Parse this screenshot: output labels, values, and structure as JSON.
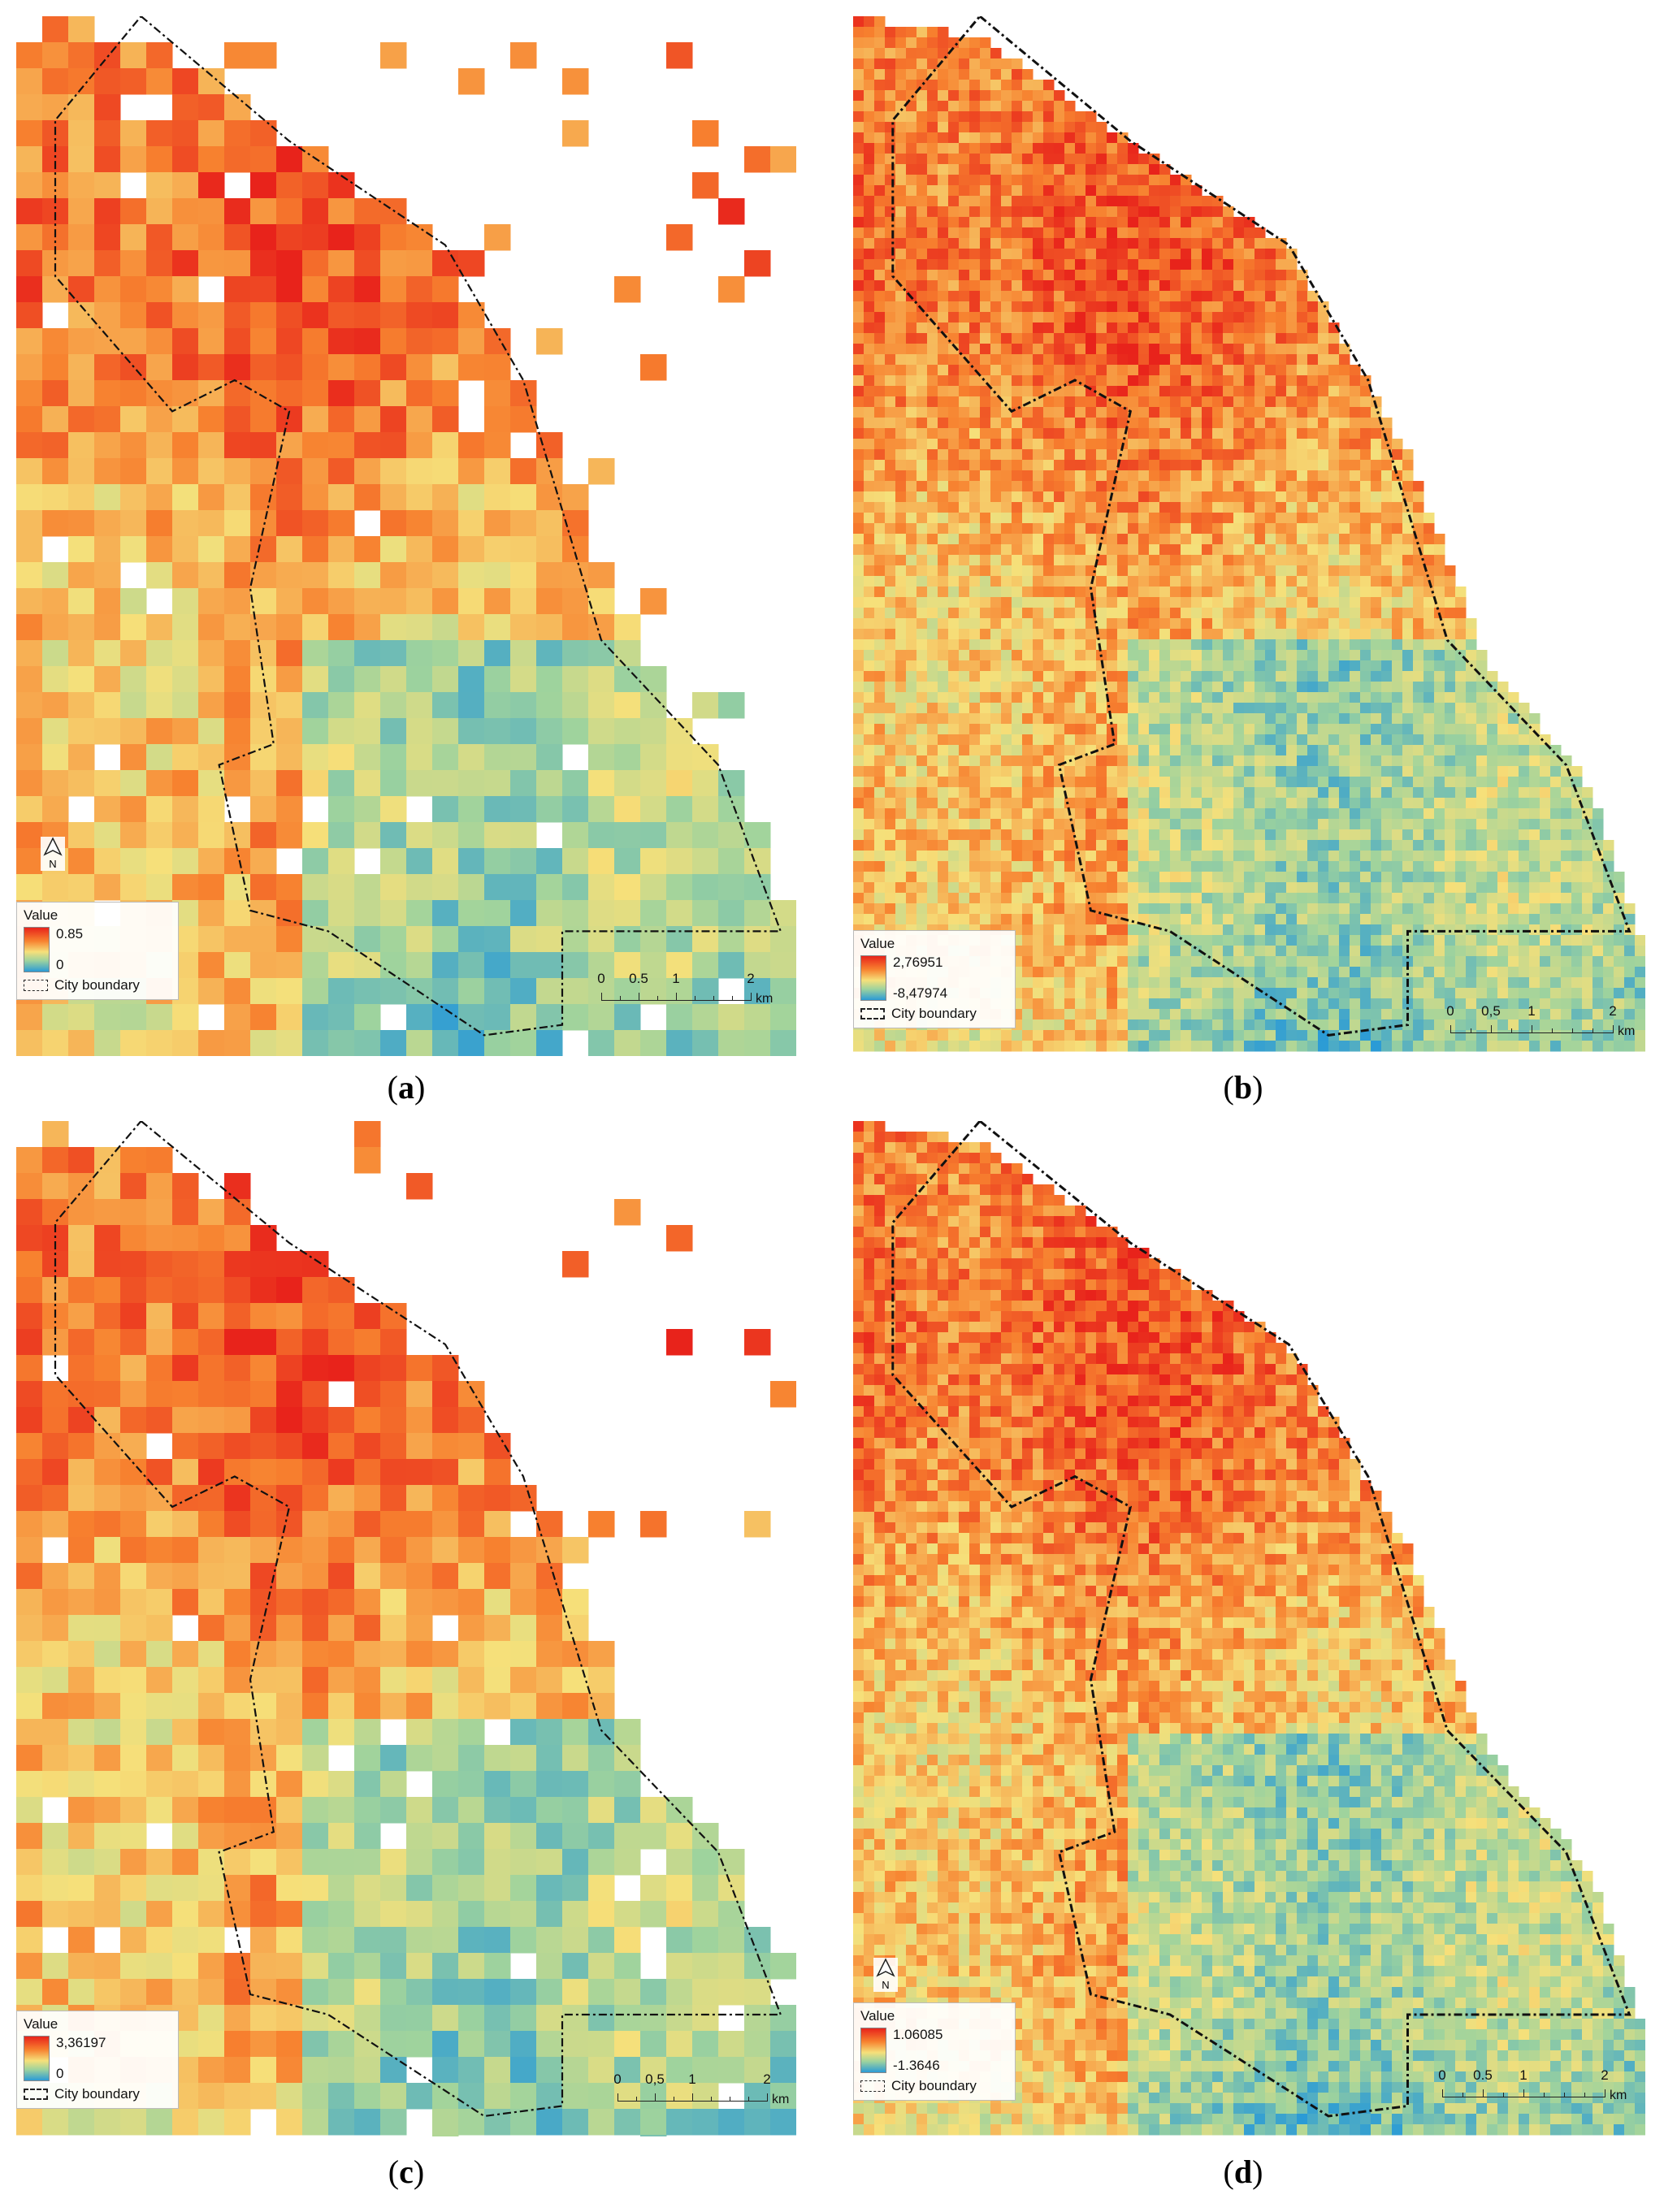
{
  "figure": {
    "panels": [
      {
        "id": "a",
        "label_open": "(",
        "label_letter": "a",
        "label_close": ")",
        "style": "grid",
        "legend": {
          "title": "Value",
          "max": "0.85",
          "min": "0",
          "boundary": "City boundary"
        },
        "scale": {
          "ticks": [
            "0",
            "0.5",
            "1",
            "2"
          ],
          "unit": "km"
        },
        "north_arrow": true
      },
      {
        "id": "b",
        "label_open": "(",
        "label_letter": "b",
        "label_close": ")",
        "style": "fine",
        "legend": {
          "title": "Value",
          "max": "2,76951",
          "min": "-8,47974",
          "boundary": "City boundary"
        },
        "scale": {
          "ticks": [
            "0",
            "0,5",
            "1",
            "2"
          ],
          "unit": "km"
        },
        "north_arrow": false
      },
      {
        "id": "c",
        "label_open": "(",
        "label_letter": "c",
        "label_close": ")",
        "style": "grid",
        "legend": {
          "title": "Value",
          "max": "3,36197",
          "min": "0",
          "boundary": "City boundary"
        },
        "scale": {
          "ticks": [
            "0",
            "0,5",
            "1",
            "2"
          ],
          "unit": "km"
        },
        "north_arrow": false
      },
      {
        "id": "d",
        "label_open": "(",
        "label_letter": "d",
        "label_close": ")",
        "style": "fine",
        "legend": {
          "title": "Value",
          "max": "1.06085",
          "min": "-1.3646",
          "boundary": "City boundary"
        },
        "scale": {
          "ticks": [
            "0",
            "0.5",
            "1",
            "2"
          ],
          "unit": "km"
        },
        "north_arrow": true
      }
    ],
    "color_ramp": [
      "#e8231b",
      "#f7812f",
      "#f6e07a",
      "#9fd39d",
      "#2b9bd6"
    ],
    "north_label": "N"
  }
}
